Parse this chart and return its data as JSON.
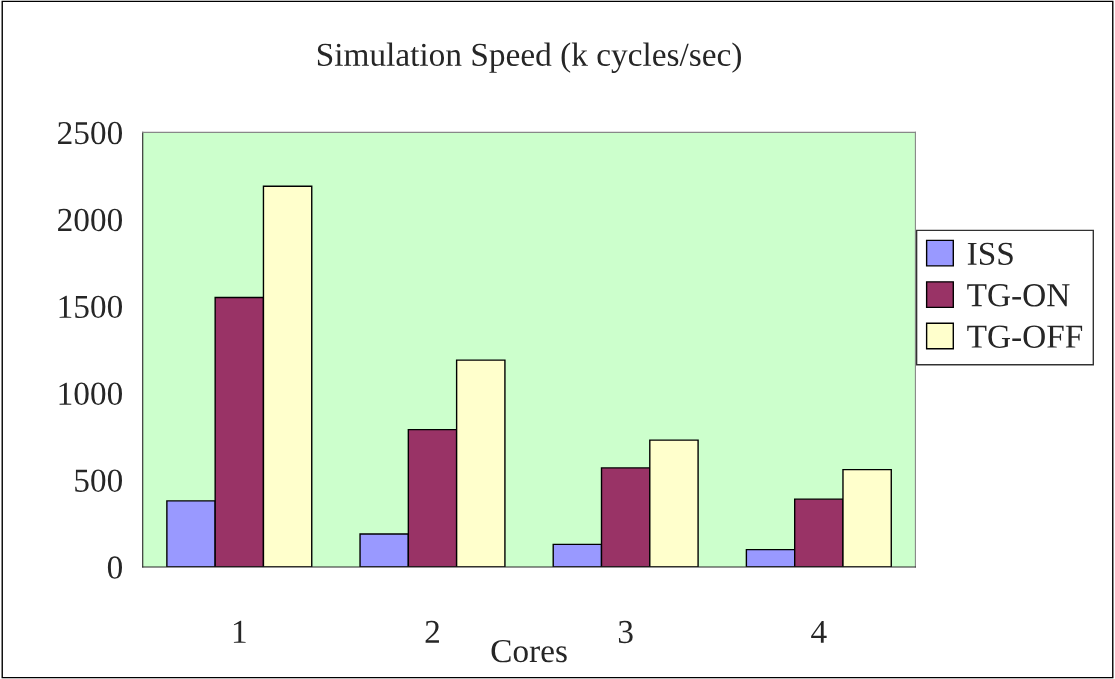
{
  "chart_data": {
    "type": "bar",
    "title": "Simulation Speed (k cycles/sec)",
    "xlabel": "Cores",
    "categories": [
      "1",
      "2",
      "3",
      "4"
    ],
    "series": [
      {
        "name": "ISS",
        "color": "#9999ff",
        "values": [
          380,
          190,
          130,
          100
        ]
      },
      {
        "name": "TG-ON",
        "color": "#993366",
        "values": [
          1550,
          790,
          570,
          390
        ]
      },
      {
        "name": "TG-OFF",
        "color": "#ffffcc",
        "values": [
          2190,
          1190,
          730,
          560
        ]
      }
    ],
    "ylim": [
      0,
      2500
    ],
    "yticks": [
      0,
      500,
      1000,
      1500,
      2000,
      2500
    ],
    "grid": false,
    "legend": "right"
  }
}
